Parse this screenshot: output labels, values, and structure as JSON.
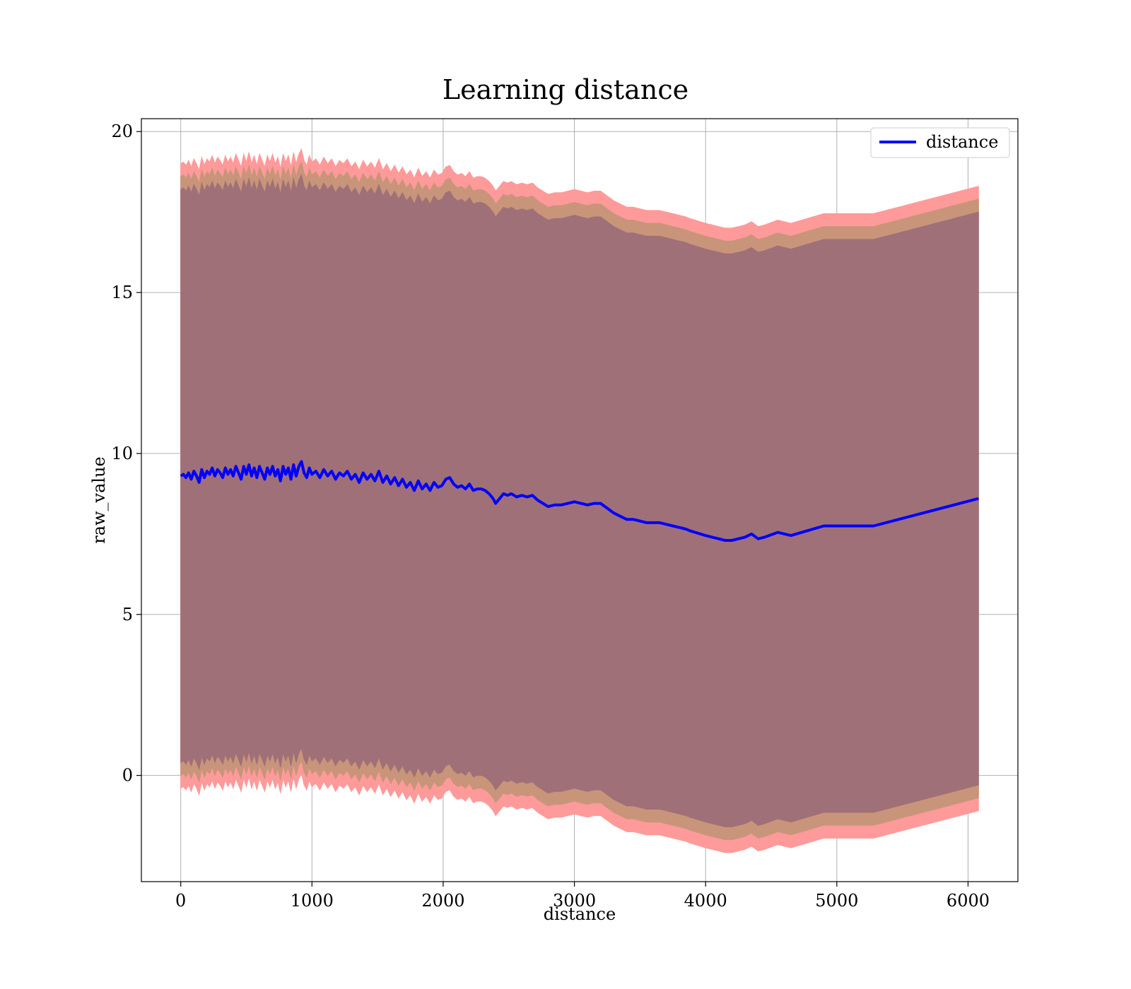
{
  "chart_data": {
    "type": "area",
    "title": "Learning distance",
    "xlabel": "distance",
    "ylabel": "raw_value",
    "xlim": [
      -300,
      6380
    ],
    "ylim": [
      -3.3,
      20.4
    ],
    "xticks": [
      0,
      1000,
      2000,
      3000,
      4000,
      5000,
      6000
    ],
    "yticks": [
      0,
      5,
      10,
      15,
      20
    ],
    "grid": true,
    "legend": {
      "position": "top-right",
      "entries": [
        "distance"
      ]
    },
    "colors": {
      "line": "#0000ff",
      "band_outer": "#ff9a9a",
      "band_middle": "#c8957a",
      "band_inner": "#a07078",
      "grid": "#b0b0b0"
    },
    "series": [
      {
        "name": "distance",
        "x": [
          0,
          20,
          40,
          60,
          80,
          100,
          120,
          140,
          160,
          180,
          200,
          220,
          240,
          260,
          280,
          300,
          320,
          340,
          360,
          380,
          400,
          420,
          440,
          460,
          480,
          500,
          520,
          540,
          560,
          580,
          600,
          620,
          640,
          660,
          680,
          700,
          720,
          740,
          760,
          780,
          800,
          820,
          840,
          860,
          880,
          900,
          920,
          940,
          960,
          980,
          1000,
          1030,
          1060,
          1090,
          1120,
          1150,
          1180,
          1210,
          1240,
          1270,
          1300,
          1330,
          1360,
          1390,
          1420,
          1450,
          1480,
          1510,
          1540,
          1570,
          1600,
          1630,
          1660,
          1690,
          1720,
          1750,
          1780,
          1810,
          1840,
          1870,
          1900,
          1930,
          1960,
          1990,
          2020,
          2050,
          2080,
          2110,
          2140,
          2170,
          2200,
          2230,
          2260,
          2290,
          2320,
          2350,
          2380,
          2400,
          2430,
          2460,
          2490,
          2520,
          2560,
          2600,
          2640,
          2680,
          2720,
          2760,
          2800,
          2850,
          2900,
          2950,
          3000,
          3050,
          3100,
          3150,
          3200,
          3250,
          3300,
          3350,
          3400,
          3450,
          3500,
          3550,
          3600,
          3650,
          3700,
          3750,
          3800,
          3850,
          3880,
          3920,
          3960,
          4000,
          4050,
          4100,
          4150,
          4200,
          4250,
          4300,
          4350,
          4400,
          4450,
          4550,
          4650,
          4900,
          5100,
          5280,
          6080
        ],
        "values": [
          9.3,
          9.35,
          9.25,
          9.4,
          9.2,
          9.45,
          9.3,
          9.1,
          9.5,
          9.25,
          9.45,
          9.35,
          9.55,
          9.3,
          9.5,
          9.4,
          9.25,
          9.55,
          9.35,
          9.5,
          9.3,
          9.6,
          9.4,
          9.2,
          9.6,
          9.35,
          9.65,
          9.3,
          9.55,
          9.25,
          9.6,
          9.4,
          9.2,
          9.55,
          9.35,
          9.6,
          9.3,
          9.5,
          9.15,
          9.6,
          9.35,
          9.55,
          9.2,
          9.65,
          9.3,
          9.6,
          9.75,
          9.4,
          9.25,
          9.55,
          9.35,
          9.45,
          9.25,
          9.5,
          9.3,
          9.45,
          9.2,
          9.4,
          9.3,
          9.45,
          9.2,
          9.35,
          9.1,
          9.4,
          9.2,
          9.35,
          9.15,
          9.45,
          9.1,
          9.3,
          9.05,
          9.25,
          9.0,
          9.2,
          8.95,
          9.1,
          8.85,
          9.15,
          8.9,
          9.05,
          8.85,
          9.1,
          8.95,
          9.0,
          9.2,
          9.25,
          9.05,
          8.95,
          9.0,
          8.9,
          9.05,
          8.85,
          8.9,
          8.9,
          8.85,
          8.75,
          8.6,
          8.45,
          8.6,
          8.75,
          8.7,
          8.75,
          8.65,
          8.7,
          8.65,
          8.7,
          8.55,
          8.45,
          8.35,
          8.4,
          8.4,
          8.45,
          8.5,
          8.45,
          8.4,
          8.45,
          8.45,
          8.3,
          8.15,
          8.05,
          7.95,
          7.95,
          7.9,
          7.85,
          7.85,
          7.85,
          7.8,
          7.75,
          7.7,
          7.65,
          7.6,
          7.55,
          7.5,
          7.45,
          7.4,
          7.35,
          7.3,
          7.3,
          7.35,
          7.4,
          7.5,
          7.35,
          7.4,
          7.55,
          7.45,
          7.75,
          7.75,
          7.75,
          8.6
        ],
        "bands": [
          {
            "name": "outer",
            "half_width": 9.7
          },
          {
            "name": "middle",
            "half_width": 9.3
          },
          {
            "name": "inner",
            "half_width": 8.9
          }
        ]
      }
    ]
  }
}
